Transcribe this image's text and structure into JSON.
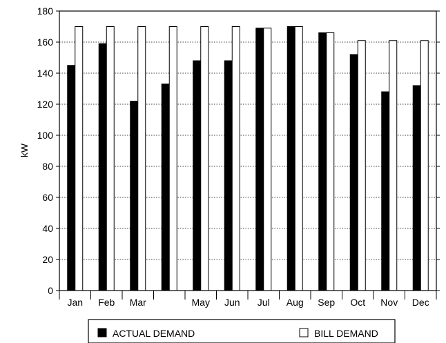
{
  "chart_data": {
    "type": "bar",
    "categories": [
      "Jan",
      "Feb",
      "Mar",
      "",
      "May",
      "Jun",
      "Jul",
      "Aug",
      "Sep",
      "Oct",
      "Nov",
      "Dec"
    ],
    "series": [
      {
        "name": "ACTUAL DEMAND",
        "values": [
          145,
          159,
          122,
          133,
          148,
          148,
          169,
          170,
          166,
          152,
          128,
          132
        ],
        "color": "#000000"
      },
      {
        "name": "BILL DEMAND",
        "values": [
          170,
          170,
          170,
          170,
          170,
          170,
          169,
          170,
          166,
          161,
          161,
          161
        ],
        "color": "#ffffff"
      }
    ],
    "title": "",
    "xlabel": "",
    "ylabel": "kW",
    "ylim": [
      0,
      180
    ],
    "yticks": [
      0,
      20,
      40,
      60,
      80,
      100,
      120,
      140,
      160,
      180
    ],
    "grid": "horizontal dotted",
    "legend_position": "bottom"
  }
}
